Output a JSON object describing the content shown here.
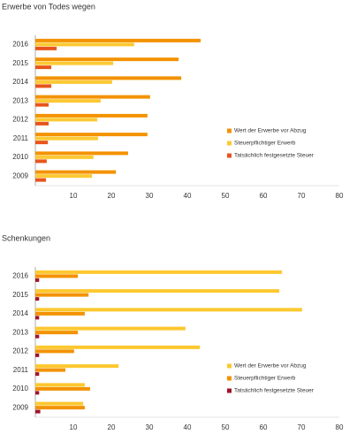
{
  "chart_data": [
    {
      "type": "bar",
      "orientation": "horizontal",
      "title": "Erwerbe von Todes wegen",
      "categories": [
        "2016",
        "2015",
        "2014",
        "2013",
        "2012",
        "2011",
        "2010",
        "2009"
      ],
      "series": [
        {
          "name": "Wert der Erwerbe vor Abzug",
          "color": "#f39200",
          "values": [
            43.5,
            37.7,
            38.4,
            30.2,
            29.5,
            29.5,
            24.4,
            21.2
          ]
        },
        {
          "name": "Steuerpflichtiger Erwerb",
          "color": "#fcc934",
          "values": [
            26,
            20.5,
            20.2,
            17.2,
            16.3,
            16.5,
            15.3,
            14.9
          ]
        },
        {
          "name": "Tatsächlich festgesetzte Steuer",
          "color": "#e8541c",
          "values": [
            5.6,
            4.2,
            4.2,
            3.5,
            3.5,
            3.3,
            3,
            2.8
          ]
        }
      ],
      "xlim": [
        0,
        80
      ],
      "xticks": [
        10,
        20,
        30,
        40,
        50,
        60,
        70,
        80
      ],
      "grid": false,
      "legend": "center right"
    },
    {
      "type": "bar",
      "orientation": "horizontal",
      "title": "Schenkungen",
      "categories": [
        "2016",
        "2015",
        "2014",
        "2013",
        "2012",
        "2011",
        "2010",
        "2009"
      ],
      "series": [
        {
          "name": "Wert der Erwerbe vor Abzug",
          "color": "#fdc82f",
          "values": [
            64.9,
            64.2,
            70.2,
            39.5,
            43.3,
            21.9,
            13,
            12.6
          ]
        },
        {
          "name": "Steuerpflichtiger Erwerb",
          "color": "#f39200",
          "values": [
            11.2,
            14,
            13,
            11.2,
            10.2,
            7.9,
            14.4,
            13
          ]
        },
        {
          "name": "Tatsächlich festgesetzte Steuer",
          "color": "#a0132a",
          "values": [
            1,
            1,
            1,
            1,
            1,
            1,
            1,
            1.3
          ]
        }
      ],
      "xlim": [
        0,
        80
      ],
      "xticks": [
        10,
        20,
        30,
        40,
        50,
        60,
        70,
        80
      ],
      "grid": false,
      "legend": "lower right"
    }
  ]
}
